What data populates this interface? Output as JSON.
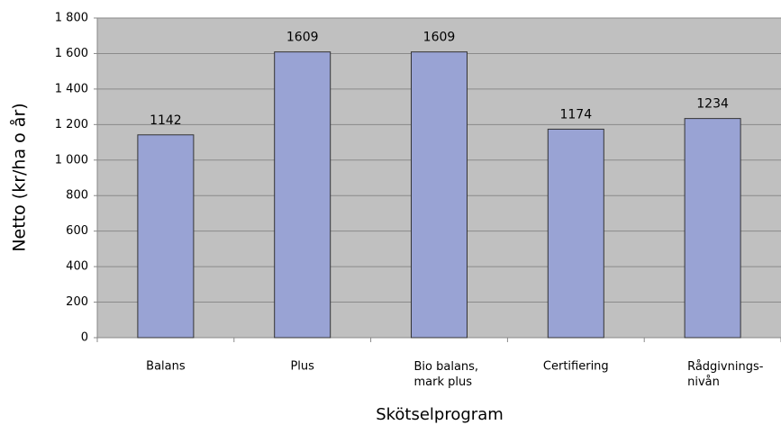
{
  "chart_data": {
    "type": "bar",
    "ylabel": "Netto (kr/ha o år)",
    "xlabel": "Skötselprogram",
    "categories": [
      "Balans",
      "Plus",
      "Bio balans, mark plus",
      "Certifiering",
      "Rådgivnings-nivån"
    ],
    "values": [
      1142,
      1609,
      1609,
      1174,
      1234
    ],
    "color": "#99a3d4",
    "ylim": [
      0,
      1800
    ],
    "yticks": [
      0,
      200,
      400,
      600,
      800,
      {
        "value": 1000,
        "label": "1 000"
      },
      {
        "value": 1200,
        "label": "1 200"
      },
      {
        "value": 1400,
        "label": "1 400"
      },
      {
        "value": 1600,
        "label": "1 600"
      },
      {
        "value": 1800,
        "label": "1 800"
      }
    ],
    "grid": true
  }
}
